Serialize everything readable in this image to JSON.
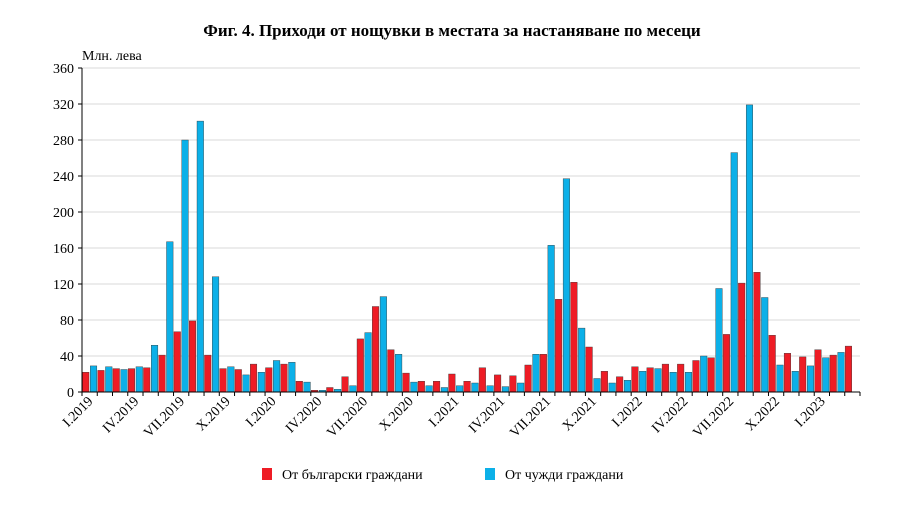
{
  "chart_data": {
    "type": "bar",
    "title": "Фиг. 4. Приходи от нощувки в местата за настаняване по месеци",
    "ylabel": "Млн. лева",
    "xlabel": "",
    "ylim": [
      0,
      360
    ],
    "yticks": [
      0,
      40,
      80,
      120,
      160,
      200,
      240,
      280,
      320,
      360
    ],
    "grid": true,
    "legend_position": "bottom",
    "categories": [
      "I.2019",
      "II.2019",
      "III.2019",
      "IV.2019",
      "V.2019",
      "VI.2019",
      "VII.2019",
      "VIII.2019",
      "IX.2019",
      "X.2019",
      "XI.2019",
      "XII.2019",
      "I.2020",
      "II.2020",
      "III.2020",
      "IV.2020",
      "V.2020",
      "VI.2020",
      "VII.2020",
      "VIII.2020",
      "IX.2020",
      "X.2020",
      "XI.2020",
      "XII.2020",
      "I.2021",
      "II.2021",
      "III.2021",
      "IV.2021",
      "V.2021",
      "VI.2021",
      "VII.2021",
      "VIII.2021",
      "IX.2021",
      "X.2021",
      "XI.2021",
      "XII.2021",
      "I.2022",
      "II.2022",
      "III.2022",
      "IV.2022",
      "V.2022",
      "VI.2022",
      "VII.2022",
      "VIII.2022",
      "IX.2022",
      "X.2022",
      "XI.2022",
      "XII.2022",
      "I.2023",
      "II.2023",
      "III.2023"
    ],
    "tick_labels": [
      {
        "index": 0,
        "label": "I.2019"
      },
      {
        "index": 3,
        "label": "IV.2019"
      },
      {
        "index": 6,
        "label": "VII.2019"
      },
      {
        "index": 9,
        "label": "X.2019"
      },
      {
        "index": 12,
        "label": "I.2020"
      },
      {
        "index": 15,
        "label": "IV.2020"
      },
      {
        "index": 18,
        "label": "VII.2020"
      },
      {
        "index": 21,
        "label": "X.2020"
      },
      {
        "index": 24,
        "label": "I.2021"
      },
      {
        "index": 27,
        "label": "IV.2021"
      },
      {
        "index": 30,
        "label": "VII.2021"
      },
      {
        "index": 33,
        "label": "X.2021"
      },
      {
        "index": 36,
        "label": "I.2022"
      },
      {
        "index": 39,
        "label": "IV.2022"
      },
      {
        "index": 42,
        "label": "VII.2022"
      },
      {
        "index": 45,
        "label": "X.2022"
      },
      {
        "index": 48,
        "label": "I.2023"
      }
    ],
    "series": [
      {
        "name": "От български граждани",
        "color": "#ee1c25",
        "values": [
          22,
          24,
          26,
          26,
          27,
          41,
          67,
          79,
          41,
          26,
          25,
          31,
          27,
          31,
          12,
          2,
          5,
          17,
          59,
          95,
          47,
          21,
          12,
          12,
          20,
          12,
          27,
          19,
          18,
          30,
          42,
          103,
          122,
          50,
          23,
          17,
          28,
          27,
          31,
          31,
          35,
          38,
          64,
          121,
          133,
          63,
          43,
          39,
          47,
          41,
          51
        ]
      },
      {
        "name": "От чужди граждани",
        "color": "#0cb0e8",
        "values": [
          29,
          28,
          25,
          28,
          52,
          167,
          280,
          301,
          128,
          28,
          19,
          22,
          35,
          33,
          11,
          2,
          3,
          7,
          66,
          106,
          42,
          11,
          7,
          5,
          7,
          10,
          7,
          6,
          10,
          42,
          163,
          237,
          71,
          15,
          10,
          13,
          23,
          26,
          22,
          22,
          40,
          115,
          266,
          319,
          105,
          30,
          23,
          29,
          38,
          44,
          0
        ]
      }
    ]
  }
}
